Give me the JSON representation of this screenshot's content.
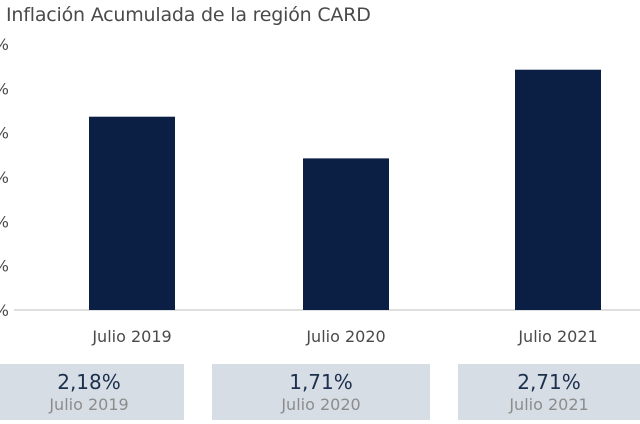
{
  "chart_data": {
    "type": "bar",
    "title": "Inflación Acumulada de la región CARD",
    "categories": [
      "Julio 2019",
      "Julio 2020",
      "Julio 2021"
    ],
    "values": [
      2.18,
      1.71,
      2.71
    ],
    "ylim": [
      0,
      3.0
    ],
    "yticks": [
      "%",
      "%",
      "%",
      "%",
      "%",
      "%",
      "%"
    ],
    "bar_color": "#0b1f44",
    "grid": false,
    "legend": "none"
  },
  "cards": [
    {
      "value": "2,18%",
      "label": "Julio 2019"
    },
    {
      "value": "1,71%",
      "label": "Julio 2020"
    },
    {
      "value": "2,71%",
      "label": "Julio 2021"
    }
  ],
  "colors": {
    "card_bg": "#d6dde4",
    "value_text": "#1c2f4d",
    "label_text": "#8c8c8c"
  }
}
